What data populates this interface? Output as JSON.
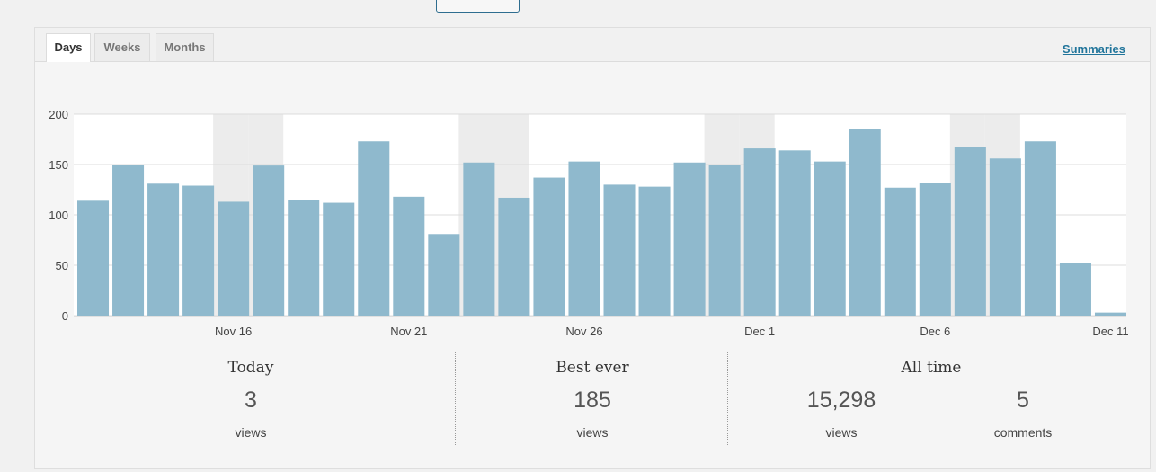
{
  "tabs": [
    {
      "label": "Days",
      "active": true
    },
    {
      "label": "Weeks",
      "active": false
    },
    {
      "label": "Months",
      "active": false
    }
  ],
  "summaries_link": "Summaries",
  "chart_data": {
    "type": "bar",
    "categories": [
      "Nov 12",
      "Nov 13",
      "Nov 14",
      "Nov 15",
      "Nov 16",
      "Nov 17",
      "Nov 18",
      "Nov 19",
      "Nov 20",
      "Nov 21",
      "Nov 22",
      "Nov 23",
      "Nov 24",
      "Nov 25",
      "Nov 26",
      "Nov 27",
      "Nov 28",
      "Nov 29",
      "Nov 30",
      "Dec 1",
      "Dec 2",
      "Dec 3",
      "Dec 4",
      "Dec 5",
      "Dec 6",
      "Dec 7",
      "Dec 8",
      "Dec 9",
      "Dec 10",
      "Dec 11"
    ],
    "values": [
      114,
      150,
      131,
      129,
      113,
      149,
      115,
      112,
      173,
      118,
      81,
      152,
      117,
      137,
      153,
      130,
      128,
      152,
      150,
      166,
      164,
      153,
      185,
      127,
      132,
      167,
      156,
      173,
      52,
      3
    ],
    "x_tick_labels": [
      "Nov 16",
      "Nov 21",
      "Nov 26",
      "Dec 1",
      "Dec 6",
      "Dec 11"
    ],
    "y_ticks": [
      0,
      50,
      100,
      150,
      200
    ],
    "ylim": [
      0,
      200
    ],
    "bar_color": "#8fb9cd",
    "weekend_shade_color": "#ececec",
    "grid": true
  },
  "stats": {
    "today": {
      "label": "Today",
      "value": "3",
      "unit": "views"
    },
    "best_ever": {
      "label": "Best ever",
      "value": "185",
      "unit": "views"
    },
    "all_time": {
      "label": "All time",
      "views_value": "15,298",
      "views_unit": "views",
      "comments_value": "5",
      "comments_unit": "comments"
    }
  }
}
